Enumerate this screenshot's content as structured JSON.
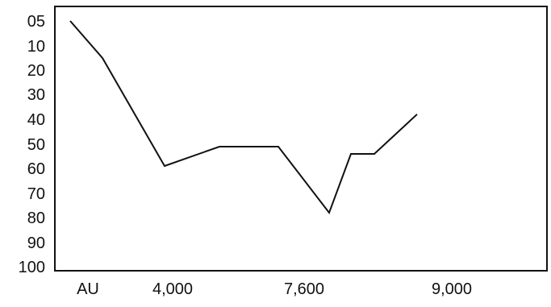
{
  "chart_data": {
    "type": "line",
    "title": "",
    "xlabel": "",
    "ylabel": "",
    "y_inverted": true,
    "ylim": [
      5,
      100
    ],
    "y_ticks": [
      "05",
      "10",
      "20",
      "30",
      "40",
      "50",
      "60",
      "70",
      "80",
      "90",
      "100"
    ],
    "x_ticks": [
      "AU",
      "4,000",
      "7,600",
      "9,000"
    ],
    "grid": false,
    "legend": "none",
    "series": [
      {
        "points": [
          {
            "x": 0,
            "y": 5
          },
          {
            "x": 40,
            "y": 15
          },
          {
            "x": 117,
            "y": 59
          },
          {
            "x": 185,
            "y": 51
          },
          {
            "x": 258,
            "y": 51
          },
          {
            "x": 321,
            "y": 78
          },
          {
            "x": 348,
            "y": 54
          },
          {
            "x": 377,
            "y": 54
          },
          {
            "x": 430,
            "y": 38
          }
        ]
      }
    ],
    "colors": {
      "line": "#111111",
      "frame": "#111111",
      "text": "#111111"
    }
  }
}
